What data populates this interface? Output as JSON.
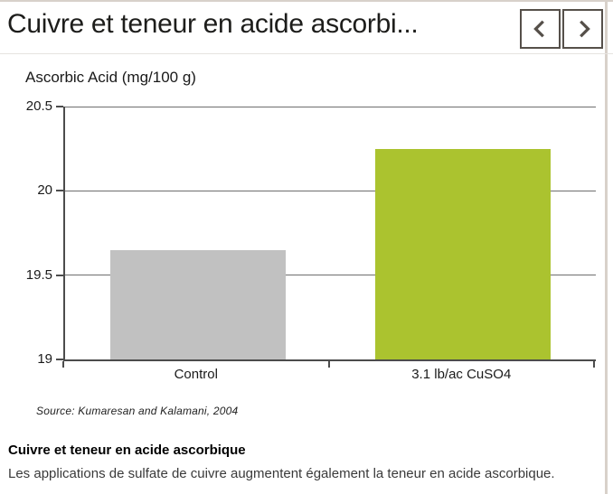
{
  "header": {
    "title": "Cuivre et teneur en acide ascorbi...",
    "nav": {
      "prev_icon": "chevron-left",
      "next_icon": "chevron-right"
    }
  },
  "chart_data": {
    "type": "bar",
    "ylabel": "Ascorbic Acid (mg/100 g)",
    "categories": [
      "Control",
      "3.1 lb/ac CuSO4"
    ],
    "values": [
      19.65,
      20.25
    ],
    "bar_colors": [
      "#c1c1c1",
      "#abc32f"
    ],
    "ylim": [
      19,
      20.5
    ],
    "yticks": [
      19,
      19.5,
      20,
      20.5
    ],
    "ytick_labels": [
      "19",
      "19.5",
      "20",
      "20.5"
    ],
    "grid": true,
    "legend": "none",
    "source_note": "Source: Kumaresan and Kalamani, 2004"
  },
  "footer": {
    "heading": "Cuivre et teneur en acide ascorbique",
    "description": "Les applications de sulfate de cuivre augmentent également la teneur en acide ascorbique."
  },
  "theme": {
    "frame_border": "#d8d1ca",
    "button_border": "#56504a",
    "axis_color": "#4c4c4c",
    "grid_color": "#6e6e6e"
  }
}
